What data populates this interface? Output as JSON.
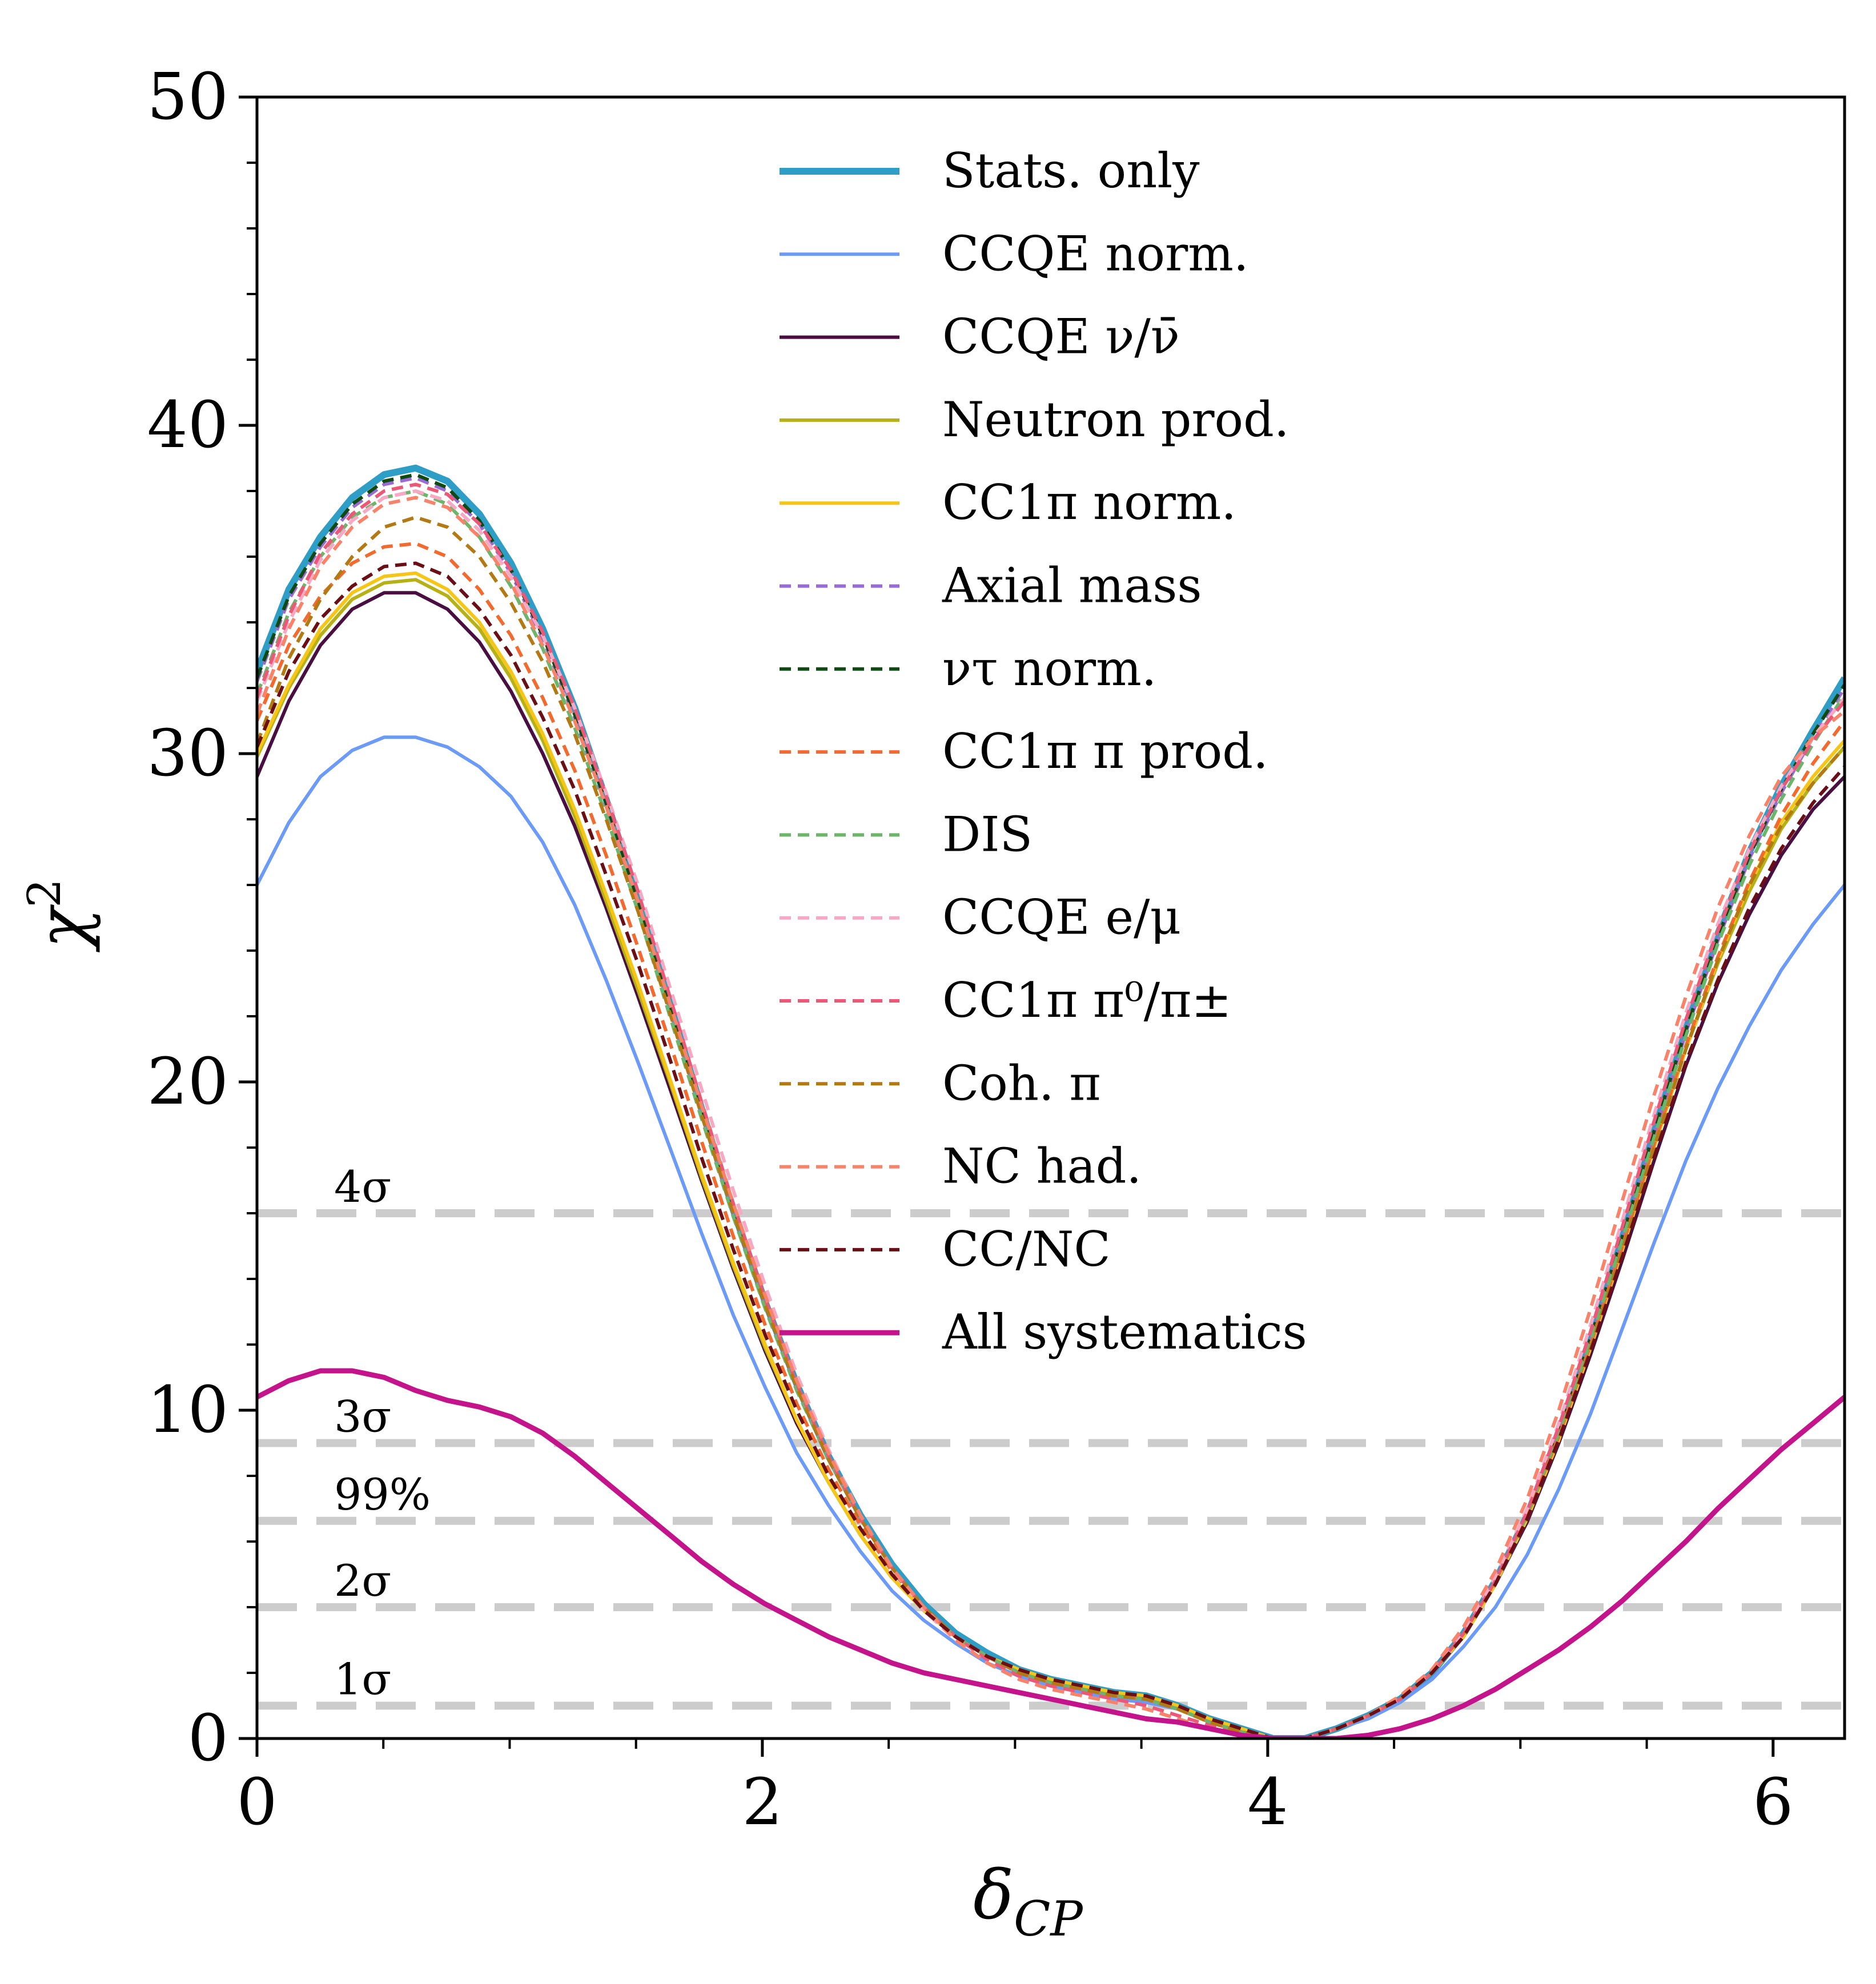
{
  "chart_data": {
    "type": "line",
    "xlabel": "δ_CP",
    "xlabel_main": "δ",
    "xlabel_sub": "CP",
    "ylabel": "χ²",
    "ylabel_main": "χ",
    "ylabel_sup": "2",
    "xlim": [
      0,
      6.283
    ],
    "ylim": [
      0,
      50
    ],
    "x_ticks": [
      0,
      2,
      4,
      6
    ],
    "x_tick_labels": [
      "0",
      "2",
      "4",
      "6"
    ],
    "y_ticks": [
      0,
      10,
      20,
      30,
      40,
      50
    ],
    "y_tick_labels": [
      "0",
      "10",
      "20",
      "30",
      "40",
      "50"
    ],
    "grid": false,
    "legend_position": "top-center",
    "reference_lines": [
      {
        "label": "4σ",
        "value": 16
      },
      {
        "label": "3σ",
        "value": 9
      },
      {
        "label": "99%",
        "value": 6.63
      },
      {
        "label": "2σ",
        "value": 4
      },
      {
        "label": "1σ",
        "value": 1
      }
    ],
    "reference_line_color": "#cccccc",
    "x": [
      0,
      0.126,
      0.251,
      0.377,
      0.503,
      0.628,
      0.754,
      0.88,
      1.005,
      1.131,
      1.257,
      1.382,
      1.508,
      1.634,
      1.759,
      1.885,
      2.011,
      2.136,
      2.262,
      2.388,
      2.513,
      2.639,
      2.765,
      2.89,
      3.016,
      3.142,
      3.267,
      3.393,
      3.519,
      3.644,
      3.77,
      3.896,
      4.021,
      4.147,
      4.273,
      4.398,
      4.524,
      4.65,
      4.775,
      4.901,
      5.027,
      5.152,
      5.278,
      5.404,
      5.529,
      5.655,
      5.781,
      5.906,
      6.032,
      6.158,
      6.283
    ],
    "series": [
      {
        "name": "Stats. only",
        "color": "#2e9ec6",
        "dashed": false,
        "width": 12,
        "values": [
          32.5,
          35.0,
          36.6,
          37.8,
          38.5,
          38.7,
          38.3,
          37.3,
          35.8,
          33.8,
          31.4,
          28.6,
          25.6,
          22.4,
          19.2,
          16.1,
          13.3,
          10.8,
          8.6,
          6.8,
          5.3,
          4.1,
          3.2,
          2.6,
          2.1,
          1.8,
          1.6,
          1.4,
          1.3,
          1.0,
          0.6,
          0.3,
          0.0,
          0.0,
          0.3,
          0.7,
          1.2,
          2.0,
          3.2,
          4.8,
          6.8,
          9.3,
          12.2,
          15.3,
          18.5,
          21.7,
          24.5,
          27.0,
          29.0,
          30.7,
          32.3
        ]
      },
      {
        "name": "CCQE norm.",
        "color": "#6b9bf6",
        "dashed": false,
        "width": 6,
        "values": [
          26.0,
          27.9,
          29.3,
          30.1,
          30.5,
          30.5,
          30.2,
          29.6,
          28.7,
          27.3,
          25.4,
          23.1,
          20.6,
          18.0,
          15.4,
          12.9,
          10.7,
          8.7,
          7.1,
          5.7,
          4.5,
          3.6,
          2.9,
          2.3,
          1.9,
          1.6,
          1.4,
          1.2,
          1.1,
          0.9,
          0.5,
          0.2,
          0.0,
          0.0,
          0.3,
          0.6,
          1.1,
          1.8,
          2.8,
          4.0,
          5.6,
          7.6,
          9.9,
          12.5,
          15.1,
          17.6,
          19.8,
          21.7,
          23.4,
          24.8,
          26.0
        ]
      },
      {
        "name": "CCQE ν/ν̄",
        "color": "#4a0f41",
        "dashed": false,
        "width": 6,
        "values": [
          29.3,
          31.6,
          33.3,
          34.4,
          34.9,
          34.9,
          34.4,
          33.4,
          31.9,
          30.0,
          27.8,
          25.3,
          22.6,
          19.8,
          17.0,
          14.3,
          11.8,
          9.6,
          7.8,
          6.2,
          4.9,
          3.9,
          3.1,
          2.5,
          2.1,
          1.8,
          1.6,
          1.4,
          1.3,
          1.0,
          0.6,
          0.3,
          0.0,
          0.0,
          0.3,
          0.7,
          1.2,
          2.0,
          3.1,
          4.7,
          6.6,
          9.0,
          11.7,
          14.6,
          17.6,
          20.5,
          23.0,
          25.1,
          26.9,
          28.3,
          29.3
        ]
      },
      {
        "name": "Neutron prod.",
        "color": "#b5b117",
        "dashed": false,
        "width": 6,
        "values": [
          29.9,
          32.0,
          33.6,
          34.7,
          35.2,
          35.3,
          34.8,
          33.8,
          32.3,
          30.4,
          28.1,
          25.5,
          22.8,
          20.0,
          17.1,
          14.4,
          11.9,
          9.7,
          7.8,
          6.2,
          4.9,
          3.9,
          3.1,
          2.5,
          2.1,
          1.8,
          1.6,
          1.4,
          1.3,
          1.0,
          0.6,
          0.3,
          0.0,
          0.0,
          0.3,
          0.7,
          1.2,
          2.0,
          3.1,
          4.7,
          6.7,
          9.1,
          11.9,
          14.9,
          18.0,
          21.0,
          23.6,
          25.8,
          27.7,
          29.1,
          30.2
        ]
      },
      {
        "name": "CC1π norm.",
        "color": "#f5c518",
        "dashed": false,
        "width": 6,
        "values": [
          30.0,
          32.1,
          33.8,
          34.9,
          35.4,
          35.5,
          35.0,
          34.0,
          32.5,
          30.6,
          28.3,
          25.7,
          23.0,
          20.1,
          17.2,
          14.5,
          12.0,
          9.7,
          7.8,
          6.2,
          4.9,
          3.9,
          3.1,
          2.5,
          2.1,
          1.8,
          1.6,
          1.4,
          1.3,
          1.0,
          0.6,
          0.3,
          0.0,
          0.0,
          0.3,
          0.7,
          1.2,
          2.0,
          3.1,
          4.7,
          6.7,
          9.1,
          11.9,
          14.9,
          18.0,
          21.0,
          23.7,
          26.0,
          27.9,
          29.3,
          30.4
        ]
      },
      {
        "name": "Axial mass",
        "color": "#9a6bd4",
        "dashed": true,
        "width": 6,
        "values": [
          32.2,
          34.7,
          36.3,
          37.5,
          38.2,
          38.4,
          38.0,
          37.0,
          35.5,
          33.5,
          31.1,
          28.4,
          25.4,
          22.2,
          19.0,
          16.0,
          13.2,
          10.7,
          8.5,
          6.7,
          5.2,
          4.0,
          3.1,
          2.5,
          2.0,
          1.7,
          1.5,
          1.3,
          1.2,
          0.9,
          0.5,
          0.2,
          0.0,
          0.0,
          0.3,
          0.7,
          1.2,
          2.0,
          3.2,
          4.8,
          6.8,
          9.3,
          12.1,
          15.2,
          18.4,
          21.5,
          24.3,
          26.8,
          28.8,
          30.5,
          32.0
        ]
      },
      {
        "name": "ντ norm.",
        "color": "#0e4a12",
        "dashed": true,
        "width": 6,
        "values": [
          32.3,
          34.8,
          36.4,
          37.6,
          38.3,
          38.5,
          38.1,
          37.1,
          35.6,
          33.6,
          31.2,
          28.5,
          25.5,
          22.3,
          19.1,
          16.0,
          13.2,
          10.7,
          8.5,
          6.7,
          5.2,
          4.0,
          3.1,
          2.5,
          2.0,
          1.7,
          1.5,
          1.3,
          1.2,
          0.9,
          0.5,
          0.2,
          0.0,
          0.0,
          0.3,
          0.7,
          1.2,
          2.0,
          3.2,
          4.8,
          6.8,
          9.3,
          12.2,
          15.3,
          18.5,
          21.6,
          24.4,
          26.9,
          28.9,
          30.6,
          32.1
        ]
      },
      {
        "name": "CC1π π prod.",
        "color": "#f36a2f",
        "dashed": true,
        "width": 6,
        "values": [
          31.0,
          33.3,
          34.8,
          35.8,
          36.3,
          36.4,
          36.0,
          35.0,
          33.6,
          31.7,
          29.5,
          26.9,
          24.1,
          21.2,
          18.2,
          15.3,
          12.6,
          10.2,
          8.2,
          6.5,
          5.1,
          4.0,
          3.1,
          2.5,
          2.0,
          1.7,
          1.5,
          1.3,
          1.2,
          0.9,
          0.5,
          0.2,
          0.0,
          0.0,
          0.3,
          0.7,
          1.2,
          2.0,
          3.2,
          4.8,
          6.8,
          9.2,
          12.0,
          15.0,
          18.1,
          21.1,
          23.8,
          26.1,
          28.1,
          29.7,
          31.0
        ]
      },
      {
        "name": "DIS",
        "color": "#6db56b",
        "dashed": true,
        "width": 6,
        "values": [
          31.8,
          34.3,
          36.0,
          37.2,
          37.8,
          38.0,
          37.6,
          36.6,
          35.1,
          33.2,
          30.8,
          28.1,
          25.2,
          22.0,
          18.9,
          15.9,
          13.1,
          10.6,
          8.5,
          6.7,
          5.2,
          4.0,
          3.1,
          2.5,
          2.0,
          1.7,
          1.5,
          1.3,
          1.2,
          0.9,
          0.5,
          0.2,
          0.0,
          0.0,
          0.3,
          0.7,
          1.2,
          2.0,
          3.2,
          4.8,
          6.8,
          9.3,
          12.1,
          15.2,
          18.3,
          21.4,
          24.2,
          26.6,
          28.6,
          30.3,
          31.8
        ]
      },
      {
        "name": "CCQE e/μ",
        "color": "#f7a9c4",
        "dashed": true,
        "width": 6,
        "values": [
          31.6,
          34.0,
          35.9,
          37.1,
          37.8,
          38.0,
          37.7,
          36.8,
          35.4,
          33.6,
          31.4,
          28.8,
          26.0,
          22.9,
          19.8,
          16.7,
          13.8,
          11.1,
          8.8,
          6.8,
          5.2,
          3.9,
          3.0,
          2.3,
          1.8,
          1.5,
          1.3,
          1.1,
          0.9,
          0.6,
          0.3,
          0.1,
          0.0,
          0.0,
          0.3,
          0.7,
          1.2,
          2.0,
          3.2,
          4.9,
          7.0,
          9.6,
          12.6,
          15.8,
          19.0,
          22.1,
          24.8,
          27.1,
          29.0,
          30.5,
          31.7
        ]
      },
      {
        "name": "CC1π π⁰/π±",
        "color": "#ec5877",
        "dashed": true,
        "width": 6,
        "values": [
          31.7,
          34.2,
          36.1,
          37.3,
          38.0,
          38.2,
          37.9,
          37.0,
          35.6,
          33.7,
          31.4,
          28.7,
          25.8,
          22.6,
          19.4,
          16.3,
          13.4,
          10.8,
          8.6,
          6.7,
          5.2,
          4.0,
          3.1,
          2.4,
          1.9,
          1.6,
          1.4,
          1.2,
          1.0,
          0.7,
          0.4,
          0.1,
          0.0,
          0.0,
          0.3,
          0.7,
          1.2,
          2.0,
          3.2,
          4.8,
          6.9,
          9.5,
          12.4,
          15.6,
          18.8,
          21.9,
          24.6,
          27.0,
          28.9,
          30.4,
          31.6
        ]
      },
      {
        "name": "Coh. π",
        "color": "#b37a14",
        "dashed": true,
        "width": 6,
        "values": [
          30.3,
          32.9,
          34.7,
          36.0,
          36.9,
          37.2,
          36.9,
          36.0,
          34.6,
          32.8,
          30.6,
          28.0,
          25.2,
          22.1,
          19.0,
          16.0,
          13.2,
          10.7,
          8.5,
          6.7,
          5.2,
          4.0,
          3.1,
          2.5,
          2.0,
          1.7,
          1.5,
          1.3,
          1.2,
          0.9,
          0.5,
          0.2,
          0.0,
          0.0,
          0.3,
          0.7,
          1.2,
          2.0,
          3.1,
          4.7,
          6.7,
          9.1,
          11.9,
          14.9,
          18.0,
          21.0,
          23.7,
          26.0,
          27.8,
          29.1,
          30.2
        ]
      },
      {
        "name": "NC had.",
        "color": "#f8836a",
        "dashed": true,
        "width": 6,
        "values": [
          31.2,
          33.8,
          35.7,
          36.9,
          37.6,
          37.8,
          37.5,
          36.6,
          35.2,
          33.3,
          31.0,
          28.4,
          25.5,
          22.4,
          19.3,
          16.3,
          13.5,
          10.9,
          8.7,
          6.8,
          5.2,
          4.0,
          3.0,
          2.3,
          1.8,
          1.5,
          1.3,
          1.1,
          0.9,
          0.6,
          0.3,
          0.1,
          0.0,
          0.0,
          0.3,
          0.7,
          1.3,
          2.1,
          3.4,
          5.1,
          7.3,
          10.0,
          13.1,
          16.4,
          19.6,
          22.6,
          25.3,
          27.5,
          29.3,
          30.5,
          31.3
        ]
      },
      {
        "name": "CC/NC",
        "color": "#6b0f16",
        "dashed": true,
        "width": 6,
        "values": [
          30.2,
          32.5,
          34.1,
          35.1,
          35.7,
          35.8,
          35.4,
          34.4,
          33.0,
          31.1,
          28.9,
          26.3,
          23.6,
          20.7,
          17.7,
          14.9,
          12.3,
          10.0,
          8.0,
          6.4,
          5.0,
          3.9,
          3.1,
          2.5,
          2.1,
          1.8,
          1.6,
          1.4,
          1.3,
          1.0,
          0.6,
          0.3,
          0.0,
          0.0,
          0.3,
          0.7,
          1.2,
          2.0,
          3.1,
          4.7,
          6.7,
          9.1,
          11.8,
          14.7,
          17.7,
          20.6,
          23.1,
          25.3,
          27.1,
          28.5,
          29.6
        ]
      },
      {
        "name": "All systematics",
        "color": "#c4148c",
        "dashed": false,
        "width": 9,
        "values": [
          10.4,
          10.9,
          11.2,
          11.2,
          11.0,
          10.6,
          10.3,
          10.1,
          9.8,
          9.3,
          8.6,
          7.8,
          7.0,
          6.2,
          5.4,
          4.7,
          4.1,
          3.6,
          3.1,
          2.7,
          2.3,
          2.0,
          1.8,
          1.6,
          1.4,
          1.2,
          1.0,
          0.8,
          0.6,
          0.5,
          0.3,
          0.1,
          0.0,
          0.0,
          0.0,
          0.1,
          0.3,
          0.6,
          1.0,
          1.5,
          2.1,
          2.7,
          3.4,
          4.2,
          5.1,
          6.0,
          7.0,
          7.9,
          8.8,
          9.6,
          10.4
        ]
      }
    ]
  }
}
